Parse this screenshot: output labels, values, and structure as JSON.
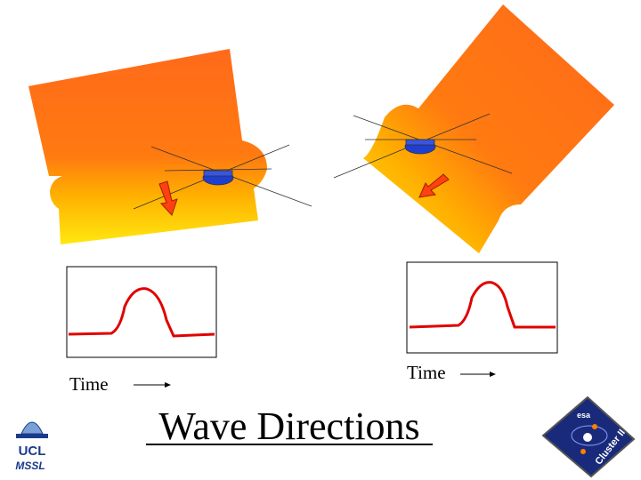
{
  "title": "Wave Directions",
  "panels": [
    {
      "axis_label": "Time"
    },
    {
      "axis_label": "Time"
    }
  ],
  "logos": {
    "left": {
      "name": "UCL",
      "sub": "MSSL"
    },
    "right": {
      "agency": "esa",
      "mission": "Cluster II"
    }
  }
}
